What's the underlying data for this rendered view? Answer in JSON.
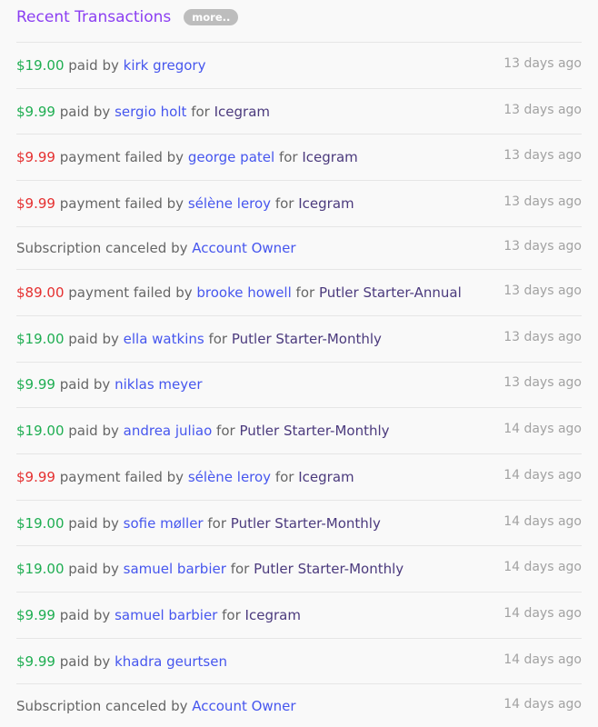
{
  "header": {
    "title": "Recent Transactions",
    "more_label": "more.."
  },
  "colors": {
    "title": "#8b3ff2",
    "paid": "#1fae52",
    "failed": "#e53030",
    "user": "#4656ee",
    "product": "#4b3a7d"
  },
  "transactions": [
    {
      "type": "payment",
      "status": "paid",
      "amount": "$19.00",
      "action": "paid by",
      "user": "kirk gregory",
      "for": "",
      "product": "",
      "time": "13 days ago"
    },
    {
      "type": "payment",
      "status": "paid",
      "amount": "$9.99",
      "action": "paid by",
      "user": "sergio holt",
      "for": "for",
      "product": "Icegram",
      "time": "13 days ago"
    },
    {
      "type": "payment",
      "status": "failed",
      "amount": "$9.99",
      "action": "payment failed by",
      "user": "george patel",
      "for": "for",
      "product": "Icegram",
      "time": "13 days ago"
    },
    {
      "type": "payment",
      "status": "failed",
      "amount": "$9.99",
      "action": "payment failed by",
      "user": "sélène leroy",
      "for": "for",
      "product": "Icegram",
      "time": "13 days ago"
    },
    {
      "type": "cancel",
      "status": "",
      "amount": "",
      "action": "Subscription canceled by",
      "user": "Account Owner",
      "for": "",
      "product": "",
      "time": "13 days ago"
    },
    {
      "type": "payment",
      "status": "failed",
      "amount": "$89.00",
      "action": "payment failed by",
      "user": "brooke howell",
      "for": "for",
      "product": "Putler Starter-Annual",
      "time": "13 days ago"
    },
    {
      "type": "payment",
      "status": "paid",
      "amount": "$19.00",
      "action": "paid by",
      "user": "ella watkins",
      "for": "for",
      "product": "Putler Starter-Monthly",
      "time": "13 days ago"
    },
    {
      "type": "payment",
      "status": "paid",
      "amount": "$9.99",
      "action": "paid by",
      "user": "niklas meyer",
      "for": "",
      "product": "",
      "time": "13 days ago"
    },
    {
      "type": "payment",
      "status": "paid",
      "amount": "$19.00",
      "action": "paid by",
      "user": "andrea juliao",
      "for": "for",
      "product": "Putler Starter-Monthly",
      "time": "14 days ago"
    },
    {
      "type": "payment",
      "status": "failed",
      "amount": "$9.99",
      "action": "payment failed by",
      "user": "sélène leroy",
      "for": "for",
      "product": "Icegram",
      "time": "14 days ago"
    },
    {
      "type": "payment",
      "status": "paid",
      "amount": "$19.00",
      "action": "paid by",
      "user": "sofie møller",
      "for": "for",
      "product": "Putler Starter-Monthly",
      "time": "14 days ago"
    },
    {
      "type": "payment",
      "status": "paid",
      "amount": "$19.00",
      "action": "paid by",
      "user": "samuel barbier",
      "for": "for",
      "product": "Putler Starter-Monthly",
      "time": "14 days ago"
    },
    {
      "type": "payment",
      "status": "paid",
      "amount": "$9.99",
      "action": "paid by",
      "user": "samuel barbier",
      "for": "for",
      "product": "Icegram",
      "time": "14 days ago"
    },
    {
      "type": "payment",
      "status": "paid",
      "amount": "$9.99",
      "action": "paid by",
      "user": "khadra geurtsen",
      "for": "",
      "product": "",
      "time": "14 days ago"
    },
    {
      "type": "cancel",
      "status": "",
      "amount": "",
      "action": "Subscription canceled by",
      "user": "Account Owner",
      "for": "",
      "product": "",
      "time": "14 days ago"
    }
  ]
}
